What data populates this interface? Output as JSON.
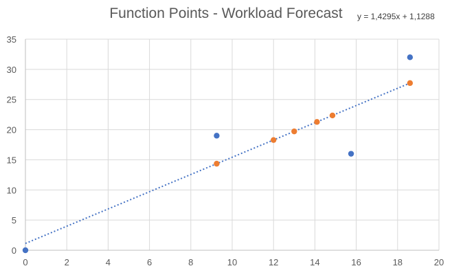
{
  "chart_data": {
    "type": "scatter",
    "title": "Function Points - Workload Forecast",
    "xlabel": "",
    "ylabel": "",
    "xlim": [
      0,
      20
    ],
    "ylim": [
      0,
      35
    ],
    "x_ticks": [
      "0",
      "2",
      "4",
      "6",
      "8",
      "10",
      "12",
      "14",
      "16",
      "18",
      "20"
    ],
    "y_ticks": [
      "0",
      "5",
      "10",
      "15",
      "20",
      "25",
      "30",
      "35"
    ],
    "grid": true,
    "legend": "none",
    "series": [
      {
        "color": "#4472C4",
        "points": [
          {
            "x": 0,
            "y": 0
          },
          {
            "x": 9.25,
            "y": 19
          },
          {
            "x": 15.75,
            "y": 16
          },
          {
            "x": 18.6,
            "y": 32
          }
        ]
      },
      {
        "color": "#ED7D31",
        "points": [
          {
            "x": 9.25,
            "y": 14.35
          },
          {
            "x": 12,
            "y": 18.28
          },
          {
            "x": 13,
            "y": 19.71
          },
          {
            "x": 14.1,
            "y": 21.28
          },
          {
            "x": 14.85,
            "y": 22.35
          },
          {
            "x": 18.6,
            "y": 27.72
          }
        ]
      }
    ],
    "trendline": {
      "type": "linear",
      "color": "#4472C4",
      "style": "dotted",
      "slope": 1.4295,
      "intercept": 1.1288,
      "x_range": [
        0,
        18.6
      ],
      "equation_label": "y = 1,4295x + 1,1288"
    }
  }
}
